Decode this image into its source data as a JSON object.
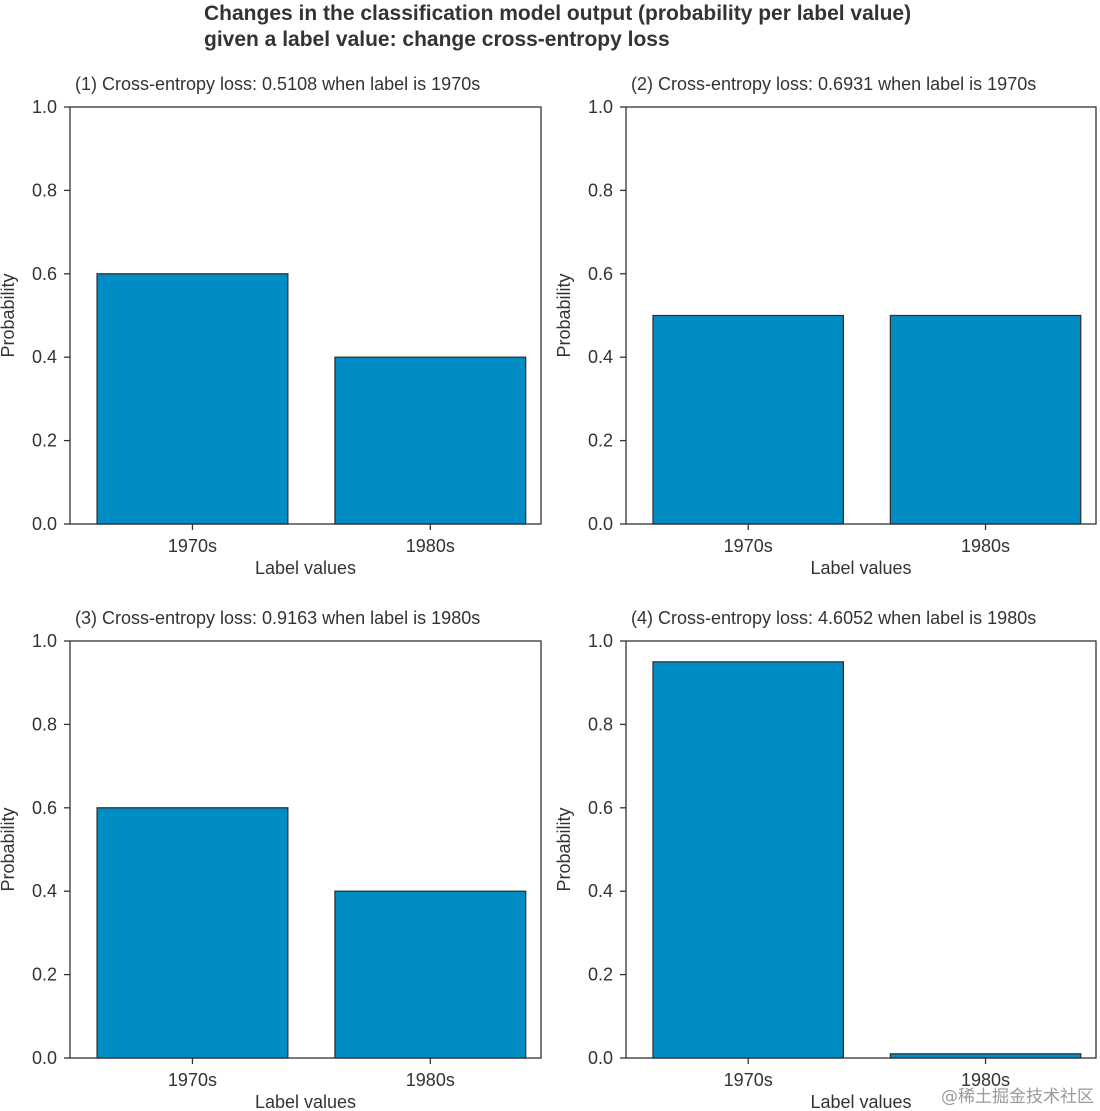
{
  "figure": {
    "title_lines": [
      "Changes in the classification model output (probability per label value)",
      "given a label value: change cross-entropy loss"
    ],
    "watermark": "@稀土掘金技术社区"
  },
  "colors": {
    "bar_fill": "#008cc4",
    "axis": "#333333",
    "text": "#333333"
  },
  "chart_data": [
    {
      "type": "bar",
      "title": "(1) Cross-entropy loss: 0.5108 when label is 1970s",
      "categories": [
        "1970s",
        "1980s"
      ],
      "values": [
        0.6,
        0.4
      ],
      "xlabel": "Label values",
      "ylabel": "Probability",
      "ylim": [
        0,
        1.0
      ],
      "yticks": [
        0.0,
        0.2,
        0.4,
        0.6,
        0.8,
        1.0
      ],
      "ytick_labels": [
        "0.0",
        "0.2",
        "0.4",
        "0.6",
        "0.8",
        "1.0"
      ],
      "grid": false
    },
    {
      "type": "bar",
      "title": "(2) Cross-entropy loss: 0.6931 when label is 1970s",
      "categories": [
        "1970s",
        "1980s"
      ],
      "values": [
        0.5,
        0.5
      ],
      "xlabel": "Label values",
      "ylabel": "Probability",
      "ylim": [
        0,
        1.0
      ],
      "yticks": [
        0.0,
        0.2,
        0.4,
        0.6,
        0.8,
        1.0
      ],
      "ytick_labels": [
        "0.0",
        "0.2",
        "0.4",
        "0.6",
        "0.8",
        "1.0"
      ],
      "grid": false
    },
    {
      "type": "bar",
      "title": "(3) Cross-entropy loss: 0.9163 when label is 1980s",
      "categories": [
        "1970s",
        "1980s"
      ],
      "values": [
        0.6,
        0.4
      ],
      "xlabel": "Label values",
      "ylabel": "Probability",
      "ylim": [
        0,
        1.0
      ],
      "yticks": [
        0.0,
        0.2,
        0.4,
        0.6,
        0.8,
        1.0
      ],
      "ytick_labels": [
        "0.0",
        "0.2",
        "0.4",
        "0.6",
        "0.8",
        "1.0"
      ],
      "grid": false
    },
    {
      "type": "bar",
      "title": "(4) Cross-entropy loss: 4.6052 when label is 1980s",
      "categories": [
        "1970s",
        "1980s"
      ],
      "values": [
        0.95,
        0.01
      ],
      "xlabel": "Label values",
      "ylabel": "Probability",
      "ylim": [
        0,
        1.0
      ],
      "yticks": [
        0.0,
        0.2,
        0.4,
        0.6,
        0.8,
        1.0
      ],
      "ytick_labels": [
        "0.0",
        "0.2",
        "0.4",
        "0.6",
        "0.8",
        "1.0"
      ],
      "grid": false
    }
  ]
}
